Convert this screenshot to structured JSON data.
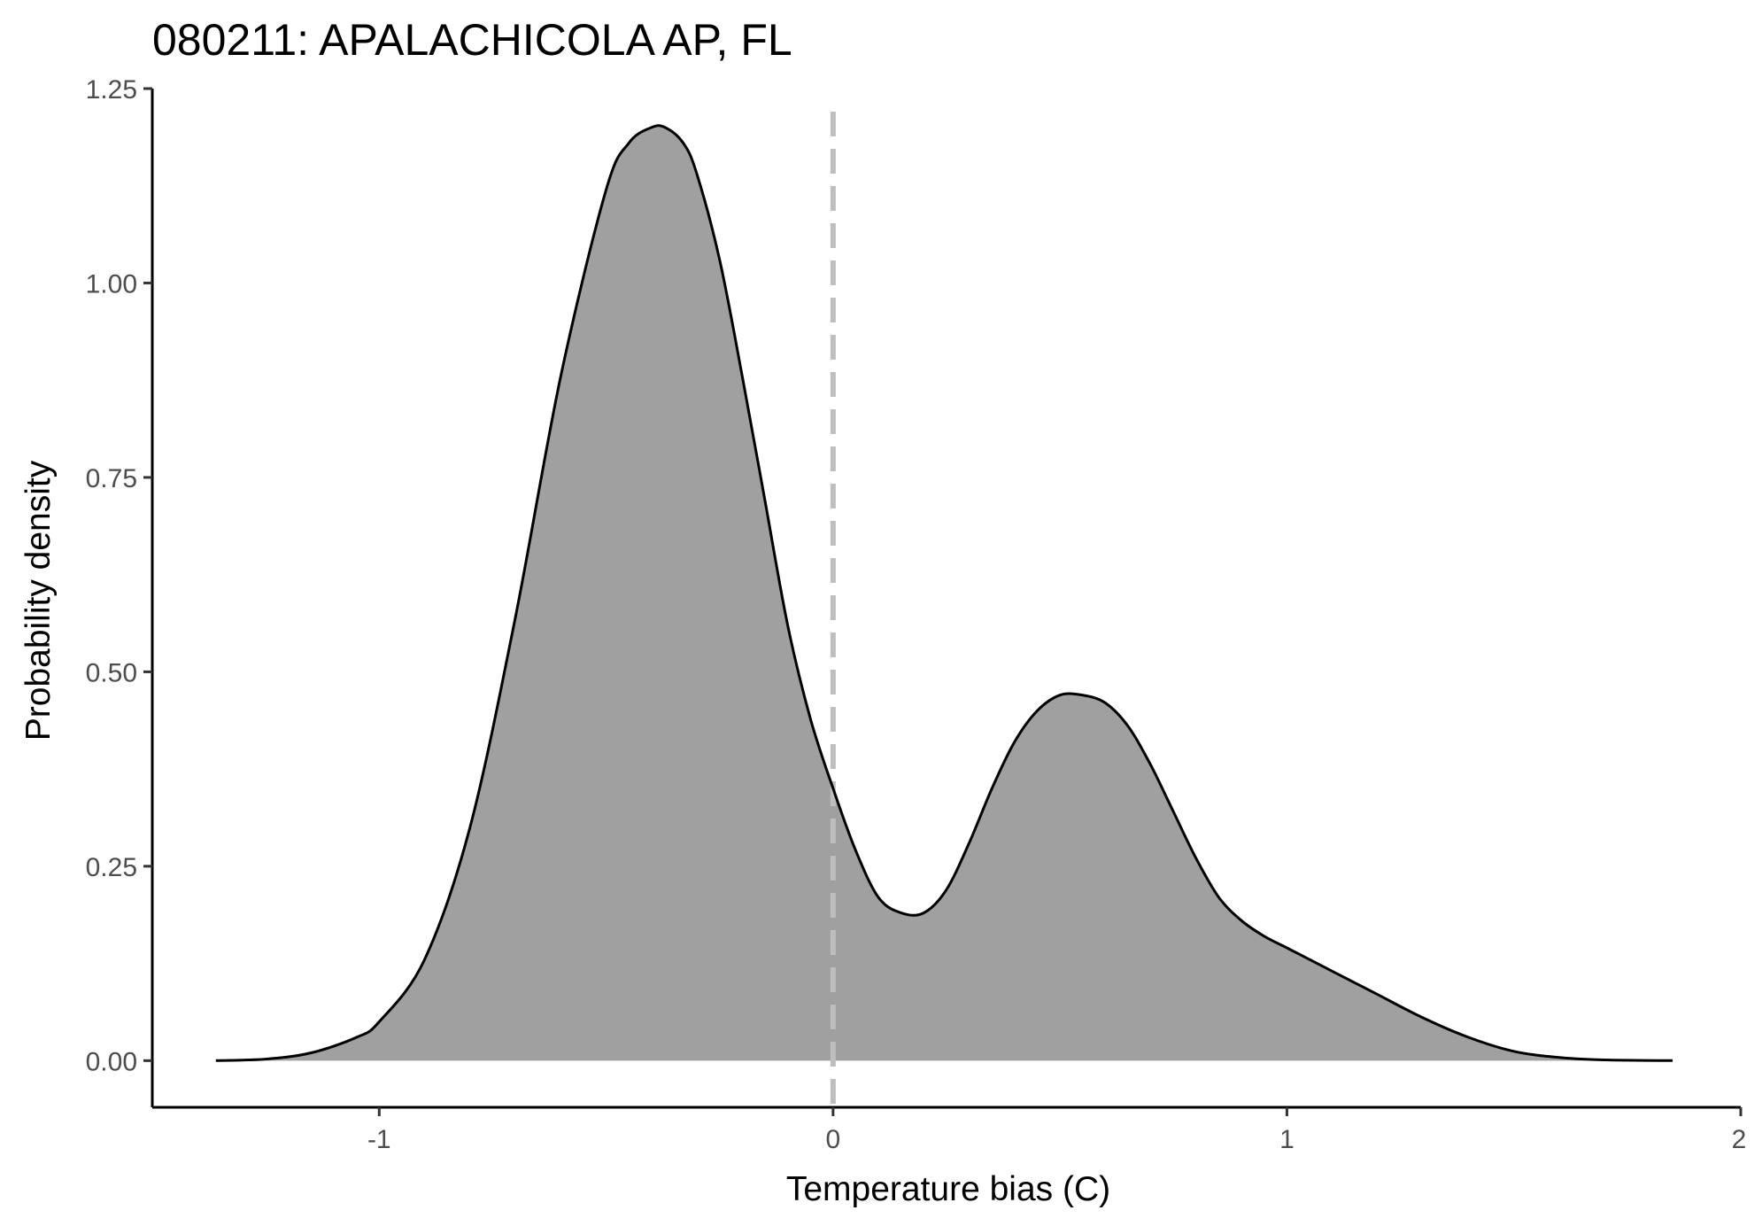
{
  "chart_data": {
    "type": "area",
    "title": "080211: APALACHICOLA AP, FL",
    "xlabel": "Temperature bias (C)",
    "ylabel": "Probability density",
    "xlim": [
      -1.5,
      2.0
    ],
    "ylim": [
      -0.06,
      1.25
    ],
    "xticks": [
      {
        "value": -1,
        "label": "-1"
      },
      {
        "value": 0,
        "label": "0"
      },
      {
        "value": 1,
        "label": "1"
      },
      {
        "value": 2,
        "label": "2"
      }
    ],
    "yticks": [
      {
        "value": 0.0,
        "label": "0.00"
      },
      {
        "value": 0.25,
        "label": "0.25"
      },
      {
        "value": 0.5,
        "label": "0.50"
      },
      {
        "value": 0.75,
        "label": "0.75"
      },
      {
        "value": 1.0,
        "label": "1.00"
      },
      {
        "value": 1.25,
        "label": "1.25"
      }
    ],
    "reference_line": {
      "x": 0,
      "style": "dashed",
      "color": "#bebebe"
    },
    "fill_color": "#a0a0a0",
    "line_color": "#000000",
    "grid": false,
    "series": [
      {
        "x": [
          -1.36,
          -1.25,
          -1.15,
          -1.05,
          -1.0,
          -0.9,
          -0.8,
          -0.7,
          -0.6,
          -0.5,
          -0.45,
          -0.4,
          -0.37,
          -0.33,
          -0.3,
          -0.25,
          -0.2,
          -0.15,
          -0.1,
          -0.05,
          0.0,
          0.05,
          0.1,
          0.15,
          0.2,
          0.25,
          0.3,
          0.35,
          0.4,
          0.45,
          0.5,
          0.55,
          0.6,
          0.65,
          0.7,
          0.75,
          0.8,
          0.85,
          0.9,
          0.95,
          1.0,
          1.05,
          1.1,
          1.2,
          1.3,
          1.4,
          1.5,
          1.6,
          1.7,
          1.85
        ],
        "y": [
          0.0,
          0.002,
          0.01,
          0.03,
          0.05,
          0.13,
          0.3,
          0.57,
          0.88,
          1.12,
          1.18,
          1.2,
          1.2,
          1.18,
          1.14,
          1.03,
          0.88,
          0.72,
          0.56,
          0.44,
          0.35,
          0.27,
          0.21,
          0.19,
          0.19,
          0.22,
          0.28,
          0.35,
          0.41,
          0.45,
          0.47,
          0.47,
          0.46,
          0.43,
          0.38,
          0.32,
          0.26,
          0.21,
          0.18,
          0.16,
          0.145,
          0.13,
          0.115,
          0.085,
          0.055,
          0.03,
          0.012,
          0.004,
          0.001,
          0.0
        ]
      }
    ]
  }
}
